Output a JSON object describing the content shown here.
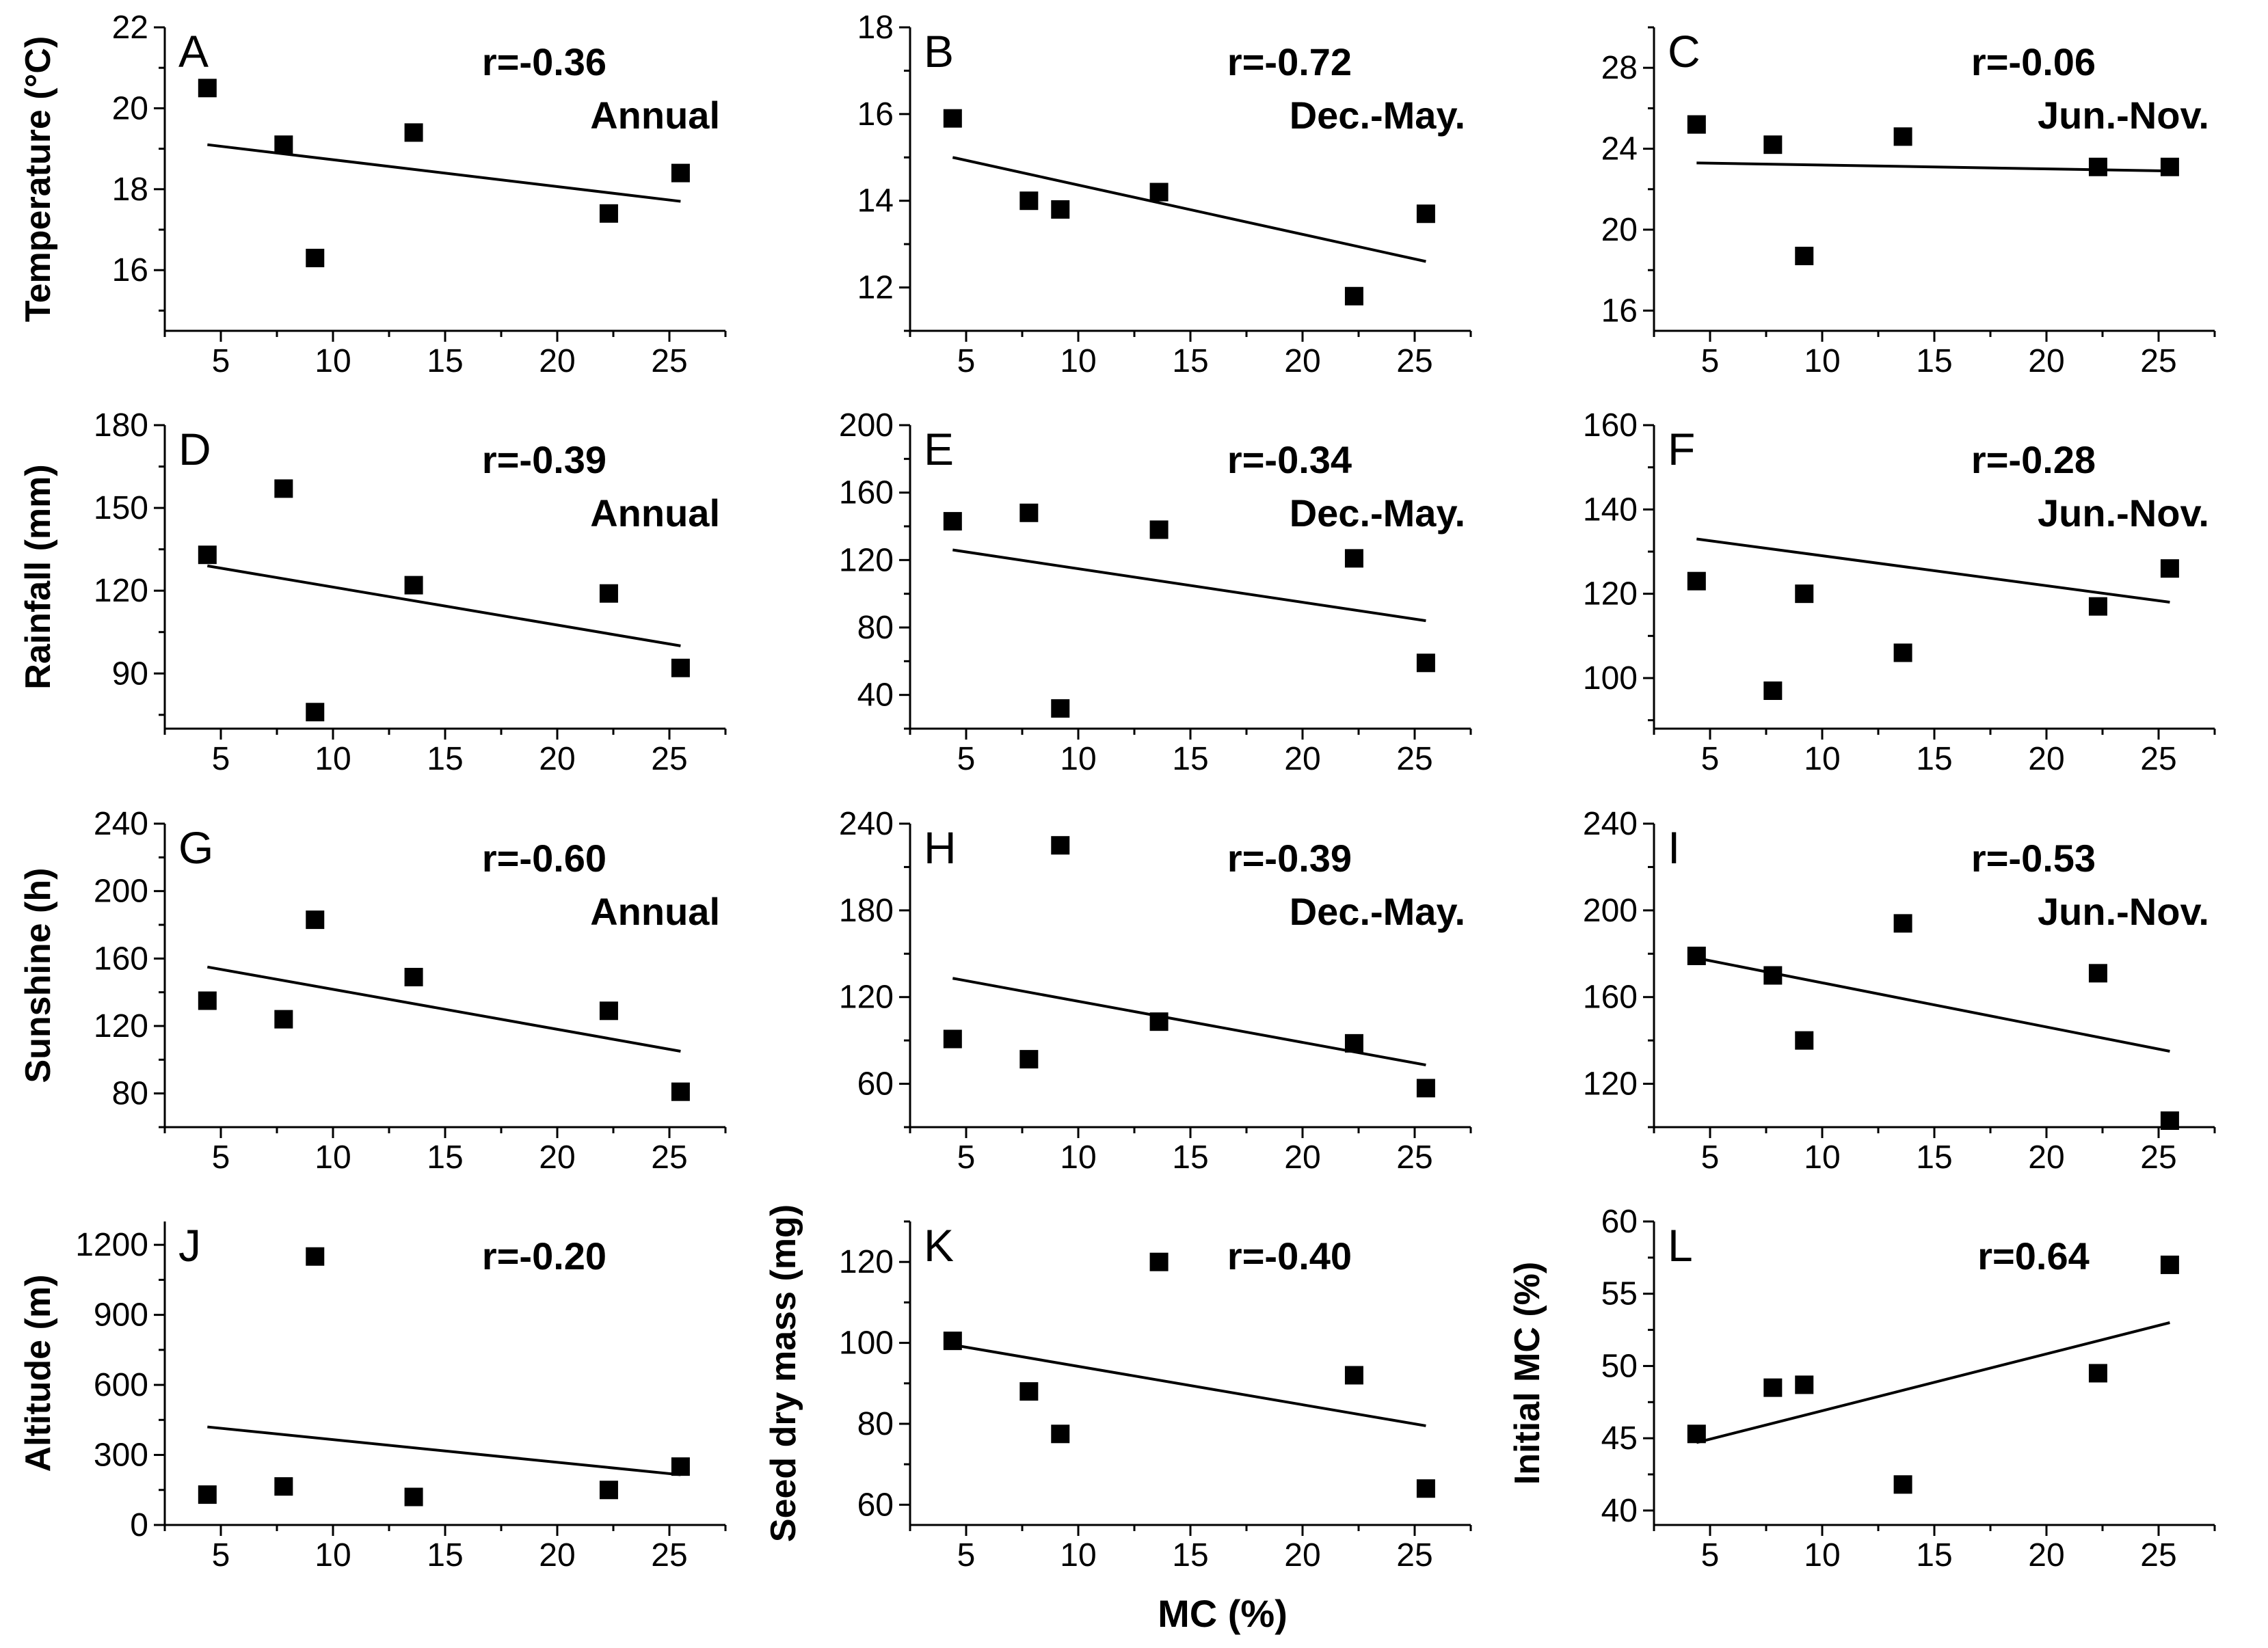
{
  "figure": {
    "xlabel": "MC (%)"
  },
  "chart_data": [
    {
      "type": "scatter",
      "panel": "A",
      "row": 0,
      "col": 0,
      "ylabel": "Temperature (°C)",
      "xlabel": "",
      "r_label": "r=-0.36",
      "period": "Annual",
      "xlim": [
        2.5,
        27.5
      ],
      "ylim": [
        14.5,
        22
      ],
      "xticks": [
        5,
        10,
        15,
        20,
        25
      ],
      "yticks": [
        16,
        18,
        20,
        22
      ],
      "x": [
        4.4,
        7.8,
        9.2,
        13.6,
        22.3,
        25.5
      ],
      "y": [
        20.5,
        19.1,
        16.3,
        19.4,
        17.4,
        18.4
      ],
      "fit": {
        "x": [
          4.4,
          25.5
        ],
        "y": [
          19.1,
          17.7
        ]
      }
    },
    {
      "type": "scatter",
      "panel": "B",
      "row": 0,
      "col": 1,
      "ylabel": "",
      "xlabel": "",
      "r_label": "r=-0.72",
      "period": "Dec.-May.",
      "xlim": [
        2.5,
        27.5
      ],
      "ylim": [
        11,
        18
      ],
      "xticks": [
        5,
        10,
        15,
        20,
        25
      ],
      "yticks": [
        12,
        14,
        16,
        18
      ],
      "x": [
        4.4,
        7.8,
        9.2,
        13.6,
        22.3,
        25.5
      ],
      "y": [
        15.9,
        14.0,
        13.8,
        14.2,
        11.8,
        13.7
      ],
      "fit": {
        "x": [
          4.4,
          25.5
        ],
        "y": [
          15.0,
          12.6
        ]
      }
    },
    {
      "type": "scatter",
      "panel": "C",
      "row": 0,
      "col": 2,
      "ylabel": "",
      "xlabel": "",
      "r_label": "r=-0.06",
      "period": "Jun.-Nov.",
      "xlim": [
        2.5,
        27.5
      ],
      "ylim": [
        15,
        30
      ],
      "xticks": [
        5,
        10,
        15,
        20,
        25
      ],
      "yticks": [
        16,
        20,
        24,
        28
      ],
      "x": [
        4.4,
        7.8,
        9.2,
        13.6,
        22.3,
        25.5
      ],
      "y": [
        25.2,
        24.2,
        18.7,
        24.6,
        23.1,
        23.1
      ],
      "fit": {
        "x": [
          4.4,
          25.5
        ],
        "y": [
          23.3,
          22.9
        ]
      }
    },
    {
      "type": "scatter",
      "panel": "D",
      "row": 1,
      "col": 0,
      "ylabel": "Rainfall (mm)",
      "xlabel": "",
      "r_label": "r=-0.39",
      "period": "Annual",
      "xlim": [
        2.5,
        27.5
      ],
      "ylim": [
        70,
        180
      ],
      "xticks": [
        5,
        10,
        15,
        20,
        25
      ],
      "yticks": [
        90,
        120,
        150,
        180
      ],
      "x": [
        4.4,
        7.8,
        9.2,
        13.6,
        22.3,
        25.5
      ],
      "y": [
        133,
        157,
        76,
        122,
        119,
        92
      ],
      "fit": {
        "x": [
          4.4,
          25.5
        ],
        "y": [
          129,
          100
        ]
      }
    },
    {
      "type": "scatter",
      "panel": "E",
      "row": 1,
      "col": 1,
      "ylabel": "",
      "xlabel": "",
      "r_label": "r=-0.34",
      "period": "Dec.-May.",
      "xlim": [
        2.5,
        27.5
      ],
      "ylim": [
        20,
        200
      ],
      "xticks": [
        5,
        10,
        15,
        20,
        25
      ],
      "yticks": [
        40,
        80,
        120,
        160,
        200
      ],
      "x": [
        4.4,
        7.8,
        9.2,
        13.6,
        22.3,
        25.5
      ],
      "y": [
        143,
        148,
        32,
        138,
        121,
        59
      ],
      "fit": {
        "x": [
          4.4,
          25.5
        ],
        "y": [
          126,
          84
        ]
      }
    },
    {
      "type": "scatter",
      "panel": "F",
      "row": 1,
      "col": 2,
      "ylabel": "",
      "xlabel": "",
      "r_label": "r=-0.28",
      "period": "Jun.-Nov.",
      "xlim": [
        2.5,
        27.5
      ],
      "ylim": [
        88,
        160
      ],
      "xticks": [
        5,
        10,
        15,
        20,
        25
      ],
      "yticks": [
        100,
        120,
        140,
        160
      ],
      "x": [
        4.4,
        7.8,
        9.2,
        13.6,
        22.3,
        25.5
      ],
      "y": [
        123,
        97,
        120,
        106,
        117,
        126
      ],
      "fit": {
        "x": [
          4.4,
          25.5
        ],
        "y": [
          133,
          118
        ]
      }
    },
    {
      "type": "scatter",
      "panel": "G",
      "row": 2,
      "col": 0,
      "ylabel": "Sunshine (h)",
      "xlabel": "",
      "r_label": "r=-0.60",
      "period": "Annual",
      "xlim": [
        2.5,
        27.5
      ],
      "ylim": [
        60,
        240
      ],
      "xticks": [
        5,
        10,
        15,
        20,
        25
      ],
      "yticks": [
        80,
        120,
        160,
        200,
        240
      ],
      "x": [
        4.4,
        7.8,
        9.2,
        13.6,
        22.3,
        25.5
      ],
      "y": [
        135,
        124,
        183,
        149,
        129,
        81
      ],
      "fit": {
        "x": [
          4.4,
          25.5
        ],
        "y": [
          155,
          105
        ]
      }
    },
    {
      "type": "scatter",
      "panel": "H",
      "row": 2,
      "col": 1,
      "ylabel": "",
      "xlabel": "",
      "r_label": "r=-0.39",
      "period": "Dec.-May.",
      "xlim": [
        2.5,
        27.5
      ],
      "ylim": [
        30,
        240
      ],
      "xticks": [
        5,
        10,
        15,
        20,
        25
      ],
      "yticks": [
        60,
        120,
        180,
        240
      ],
      "x": [
        4.4,
        7.8,
        9.2,
        13.6,
        22.3,
        25.5
      ],
      "y": [
        91,
        77,
        225,
        103,
        88,
        57
      ],
      "fit": {
        "x": [
          4.4,
          25.5
        ],
        "y": [
          133,
          73
        ]
      }
    },
    {
      "type": "scatter",
      "panel": "I",
      "row": 2,
      "col": 2,
      "ylabel": "",
      "xlabel": "",
      "r_label": "r=-0.53",
      "period": "Jun.-Nov.",
      "xlim": [
        2.5,
        27.5
      ],
      "ylim": [
        100,
        240
      ],
      "xticks": [
        5,
        10,
        15,
        20,
        25
      ],
      "yticks": [
        120,
        160,
        200,
        240
      ],
      "x": [
        4.4,
        7.8,
        9.2,
        13.6,
        22.3,
        25.5
      ],
      "y": [
        179,
        170,
        140,
        194,
        171,
        103
      ],
      "fit": {
        "x": [
          4.4,
          25.5
        ],
        "y": [
          178,
          135
        ]
      }
    },
    {
      "type": "scatter",
      "panel": "J",
      "row": 3,
      "col": 0,
      "ylabel": "Altitude (m)",
      "xlabel": "",
      "r_label": "r=-0.20",
      "period": "",
      "xlim": [
        2.5,
        27.5
      ],
      "ylim": [
        0,
        1300
      ],
      "xticks": [
        5,
        10,
        15,
        20,
        25
      ],
      "yticks": [
        0,
        300,
        600,
        900,
        1200
      ],
      "x": [
        4.4,
        7.8,
        9.2,
        13.6,
        22.3,
        25.5
      ],
      "y": [
        130,
        165,
        1150,
        120,
        150,
        250
      ],
      "fit": {
        "x": [
          4.4,
          25.5
        ],
        "y": [
          420,
          215
        ]
      }
    },
    {
      "type": "scatter",
      "panel": "K",
      "row": 3,
      "col": 1,
      "ylabel": "Seed dry mass (mg)",
      "xlabel": "",
      "r_label": "r=-0.40",
      "period": "",
      "xlim": [
        2.5,
        27.5
      ],
      "ylim": [
        55,
        130
      ],
      "xticks": [
        5,
        10,
        15,
        20,
        25
      ],
      "yticks": [
        60,
        80,
        100,
        120
      ],
      "x": [
        4.4,
        7.8,
        9.2,
        13.6,
        22.3,
        25.5
      ],
      "y": [
        100.5,
        88,
        77.5,
        120,
        92,
        64
      ],
      "fit": {
        "x": [
          4.4,
          25.5
        ],
        "y": [
          99.5,
          79.5
        ]
      }
    },
    {
      "type": "scatter",
      "panel": "L",
      "row": 3,
      "col": 2,
      "ylabel": "Initial MC (%)",
      "xlabel": "",
      "r_label": "r=0.64",
      "period": "",
      "xlim": [
        2.5,
        27.5
      ],
      "ylim": [
        39,
        60
      ],
      "xticks": [
        5,
        10,
        15,
        20,
        25
      ],
      "yticks": [
        40,
        45,
        50,
        55,
        60
      ],
      "x": [
        4.4,
        7.8,
        9.2,
        13.6,
        22.3,
        25.5
      ],
      "y": [
        45.3,
        48.5,
        48.7,
        41.8,
        49.5,
        57
      ],
      "fit": {
        "x": [
          4.4,
          25.5
        ],
        "y": [
          44.7,
          53
        ]
      }
    }
  ]
}
